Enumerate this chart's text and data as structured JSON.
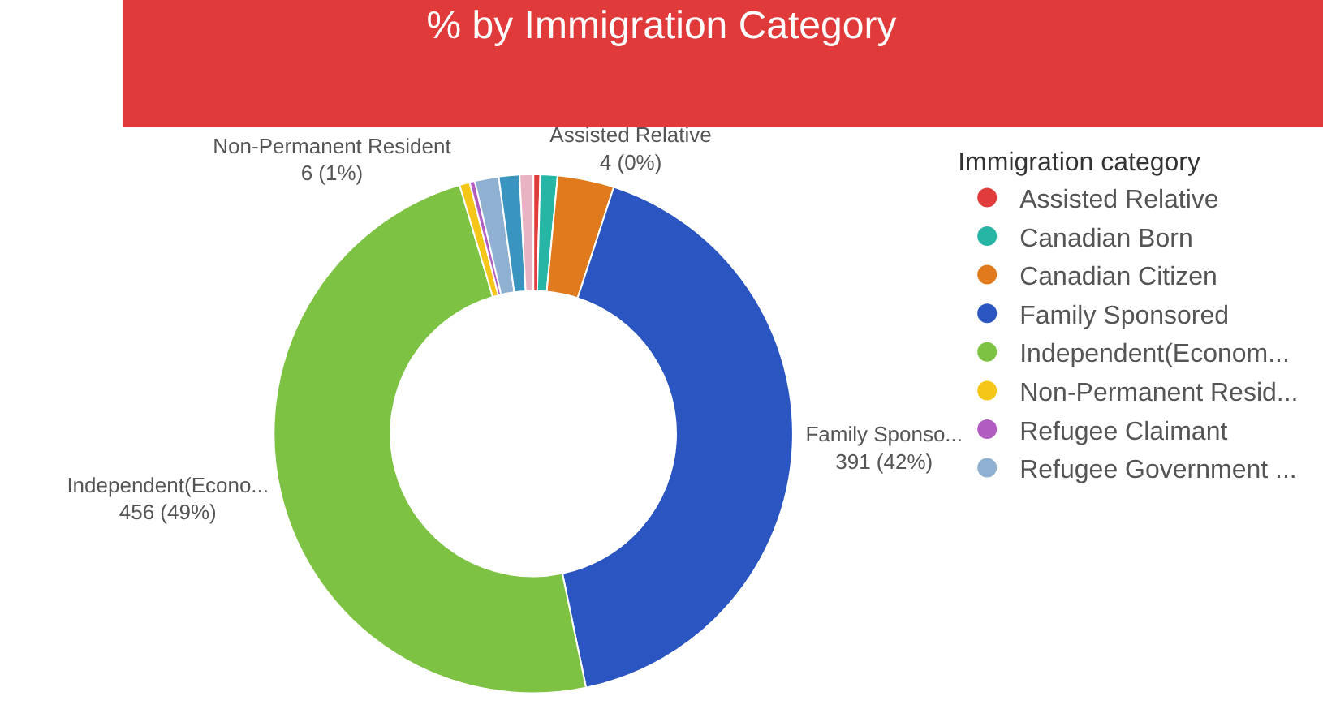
{
  "chart_data": {
    "type": "donut",
    "title": "% by Immigration Category",
    "legend_title": "Immigration category",
    "legend": "right",
    "categories": [
      "Assisted Relative",
      "Canadian Born",
      "Canadian Citizen",
      "Family Sponsored",
      "Independent(Econom...",
      "Non-Permanent Resid...",
      "Refugee Claimant",
      "Refugee Government ...",
      null,
      null
    ],
    "values": [
      4,
      10,
      33,
      391,
      456,
      6,
      3,
      14,
      12,
      8
    ],
    "colors": [
      "#e03c3c",
      "#27b5a5",
      "#e07a1c",
      "#2b55c0",
      "#7dc242",
      "#f5c518",
      "#b05cc0",
      "#8fb0d0",
      "#3a94c0",
      "#e8b4c4"
    ],
    "value_labels": [
      "Assisted Relative\n4 (0%)",
      null,
      null,
      "Family Sponso...\n391 (42%)",
      "Independent(Econo...\n456 (49%)",
      "Non-Permanent Resident\n6 (1%)",
      null,
      null,
      null,
      null
    ]
  }
}
